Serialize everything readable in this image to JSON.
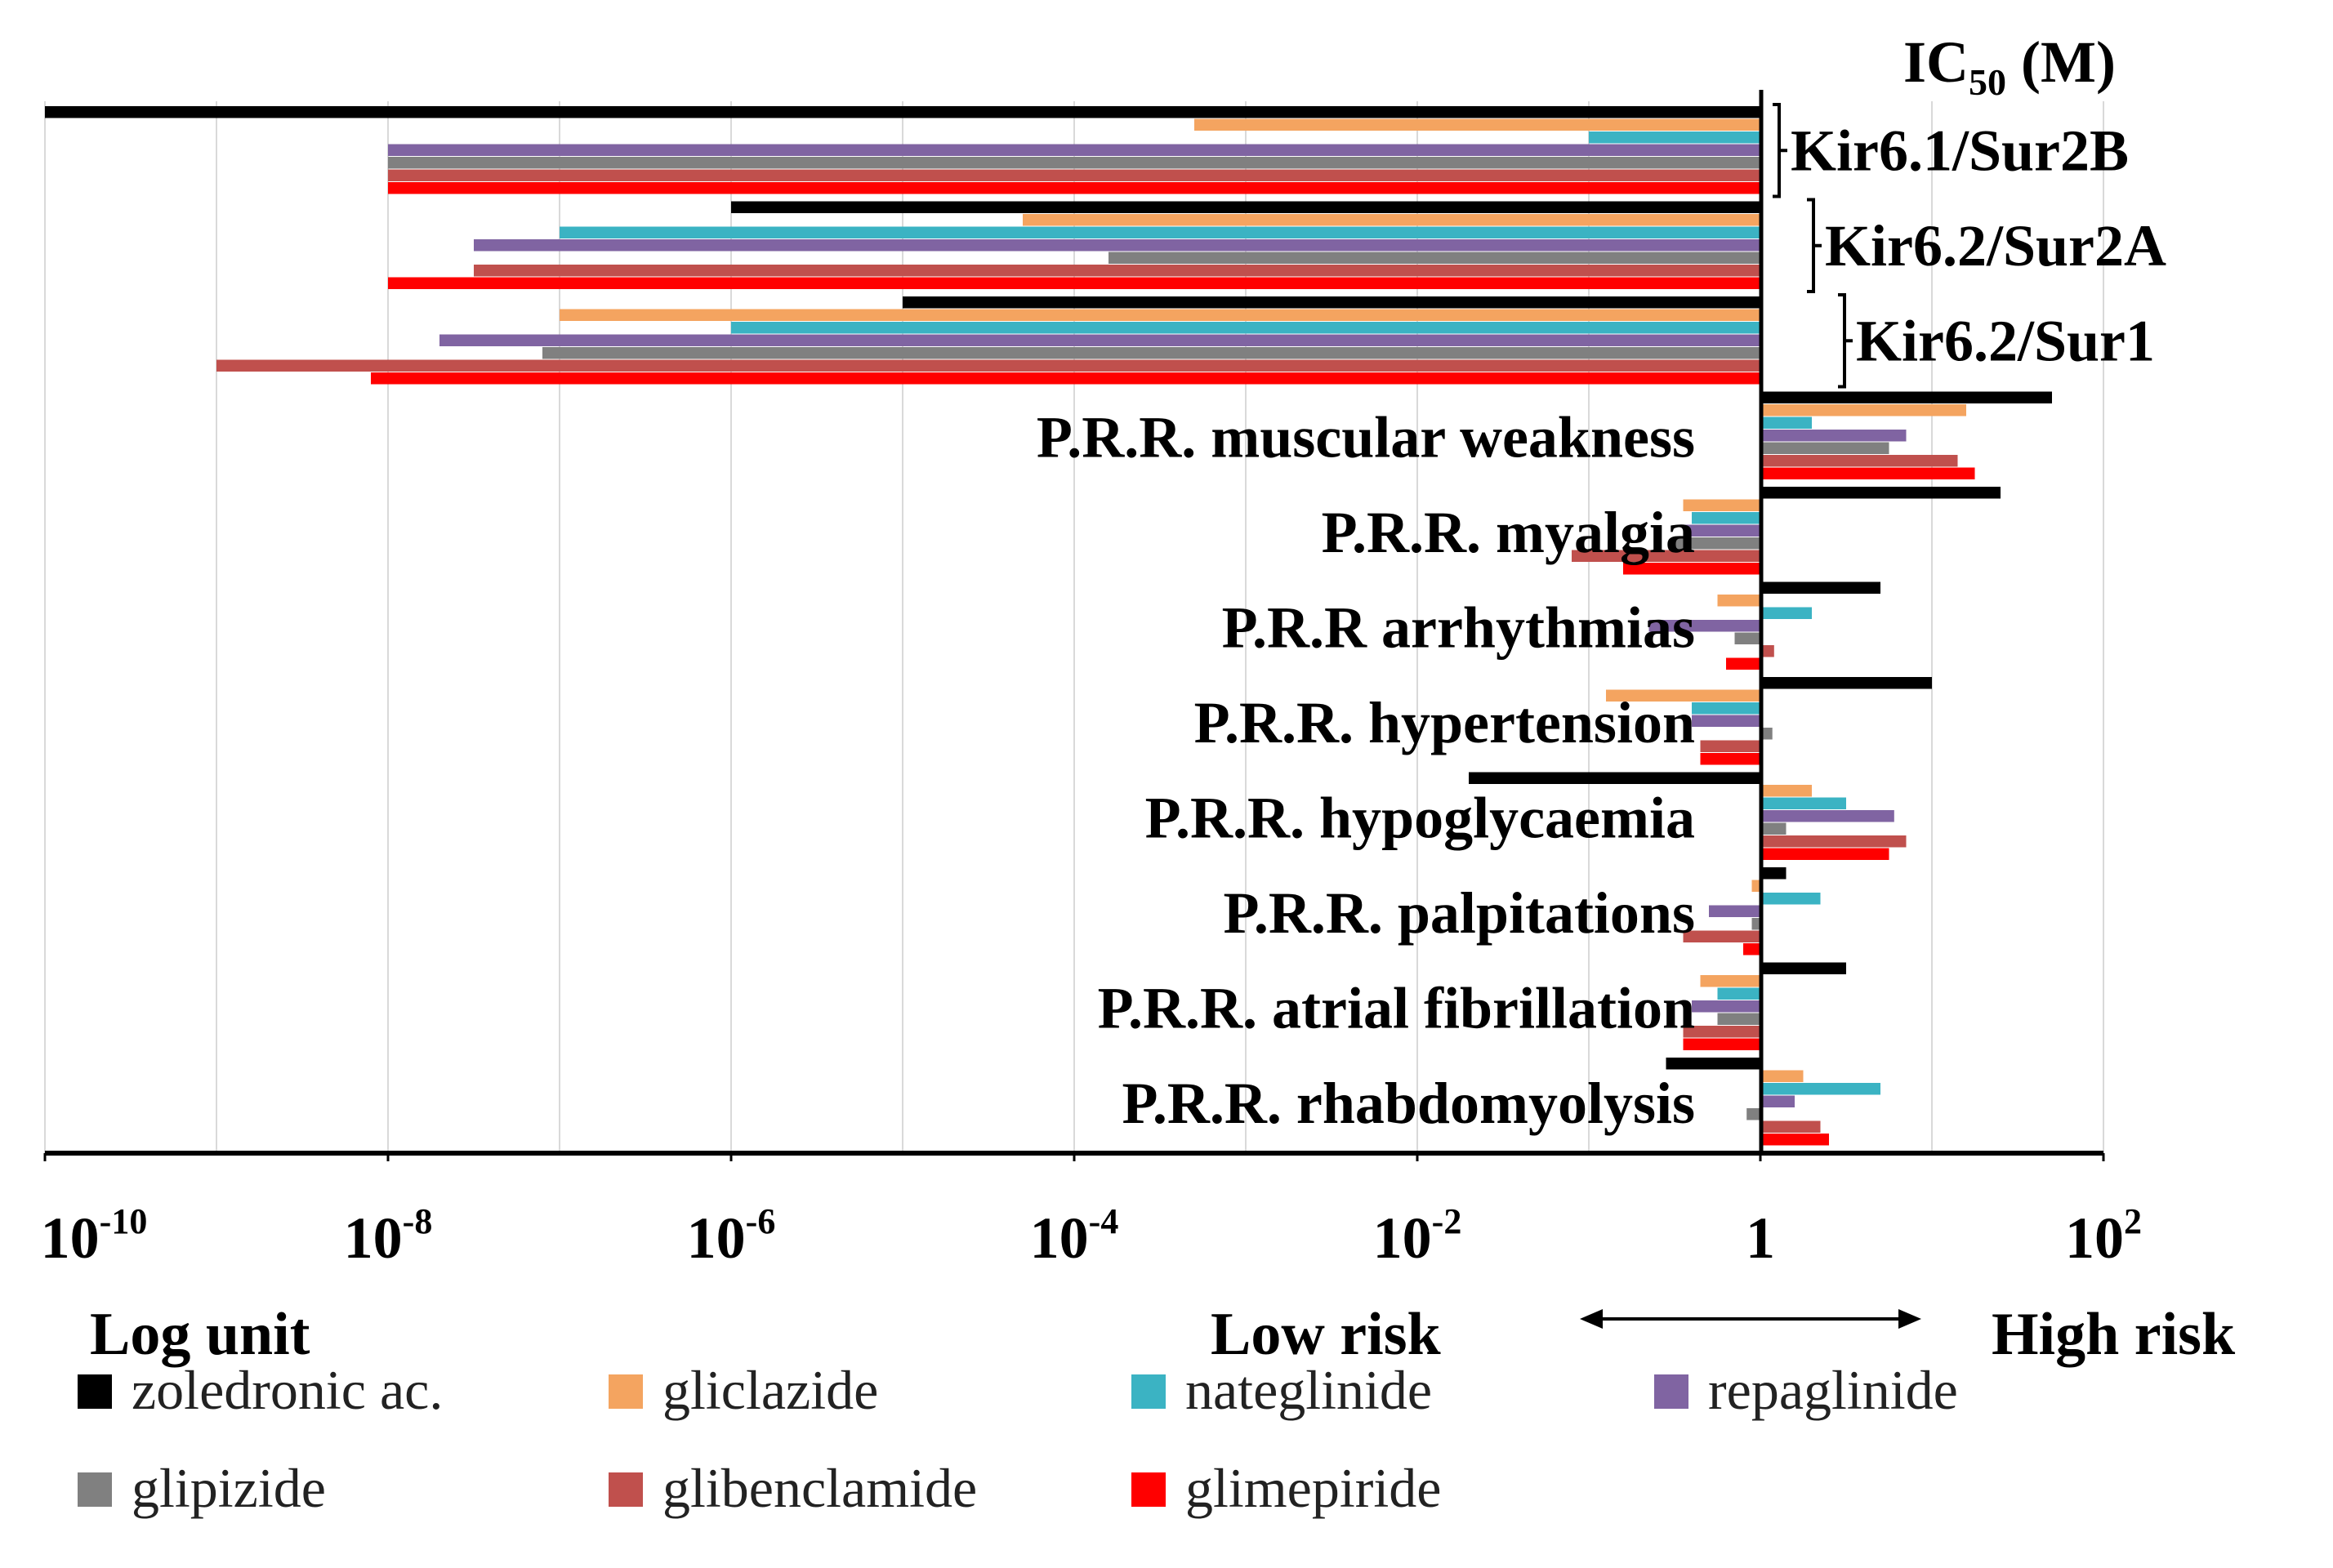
{
  "chart_data": {
    "type": "bar",
    "orientation": "horizontal",
    "x_scale": "log10",
    "xlim": [
      1e-10,
      100
    ],
    "x_tick_values": [
      -10,
      -8,
      -6,
      -4,
      -2,
      0,
      2
    ],
    "x_tick_labels": [
      {
        "base": "10",
        "exp": "-10"
      },
      {
        "base": "10",
        "exp": "-8"
      },
      {
        "base": "10",
        "exp": "-6"
      },
      {
        "base": "10",
        "exp": "-4"
      },
      {
        "base": "10",
        "exp": "-2"
      },
      {
        "base": "1",
        "exp": ""
      },
      {
        "base": "10",
        "exp": "2"
      }
    ],
    "grid": "vertical",
    "xlabel": "Log unit",
    "ic50_title": {
      "main": "IC",
      "sub": "50",
      "tail": " (M)"
    },
    "risk_labels": {
      "low": "Low risk",
      "high": "High risk"
    },
    "series": [
      {
        "name": "zoledronic ac.",
        "color": "#000000"
      },
      {
        "name": "gliclazide",
        "color": "#F4A460"
      },
      {
        "name": "nateglinide",
        "color": "#3BB3C3"
      },
      {
        "name": "repaglinide",
        "color": "#8064A2"
      },
      {
        "name": "glipizide",
        "color": "#808080"
      },
      {
        "name": "glibenclamide",
        "color": "#C0504D"
      },
      {
        "name": "glimepiride",
        "color": "#FF0000"
      }
    ],
    "categories": [
      {
        "label": "Kir6.1/Sur2B",
        "group": "IC50",
        "values": [
          -10.0,
          -3.3,
          -1.0,
          -8.0,
          -8.0,
          -8.0,
          -8.0
        ]
      },
      {
        "label": "Kir6.2/Sur2A",
        "group": "IC50",
        "values": [
          -6.0,
          -4.3,
          -7.0,
          -7.5,
          -3.8,
          -7.5,
          -8.0
        ]
      },
      {
        "label": "Kir6.2/Sur1",
        "group": "IC50",
        "values": [
          -5.0,
          -7.0,
          -6.0,
          -7.7,
          -7.1,
          -9.0,
          -8.1
        ]
      },
      {
        "label": "P.R.R. muscular weakness",
        "group": "PRR",
        "values": [
          1.7,
          1.2,
          0.3,
          0.85,
          0.75,
          1.15,
          1.25
        ]
      },
      {
        "label": "P.R.R. myalgia",
        "group": "PRR",
        "values": [
          1.4,
          -0.45,
          -0.4,
          -0.45,
          -0.5,
          -1.1,
          -0.8
        ]
      },
      {
        "label": "P.R.R arrhythmias",
        "group": "PRR",
        "values": [
          0.7,
          -0.25,
          0.3,
          -0.65,
          -0.15,
          0.08,
          -0.2
        ]
      },
      {
        "label": "P.R.R. hypertension",
        "group": "PRR",
        "values": [
          1.0,
          -0.9,
          -0.4,
          -0.4,
          0.07,
          -0.35,
          -0.35
        ]
      },
      {
        "label": "P.R.R. hypoglycaemia",
        "group": "PRR",
        "values": [
          -1.7,
          0.3,
          0.5,
          0.78,
          0.15,
          0.85,
          0.75
        ]
      },
      {
        "label": "P.R.R. palpitations",
        "group": "PRR",
        "values": [
          0.15,
          -0.05,
          0.35,
          -0.3,
          -0.05,
          -0.45,
          -0.1
        ]
      },
      {
        "label": "P.R.R. atrial fibrillation",
        "group": "PRR",
        "values": [
          0.5,
          -0.35,
          -0.25,
          -0.4,
          -0.25,
          -0.45,
          -0.45
        ]
      },
      {
        "label": "P.R.R. rhabdomyolysis",
        "group": "PRR",
        "values": [
          -0.55,
          0.25,
          0.7,
          0.2,
          -0.08,
          0.35,
          0.4
        ]
      }
    ],
    "ic50_brackets": [
      {
        "label": "Kir6.1/Sur2B",
        "category": 0
      },
      {
        "label": "Kir6.2/Sur2A",
        "category": 1
      },
      {
        "label": "Kir6.2/Sur1",
        "category": 2
      }
    ]
  }
}
